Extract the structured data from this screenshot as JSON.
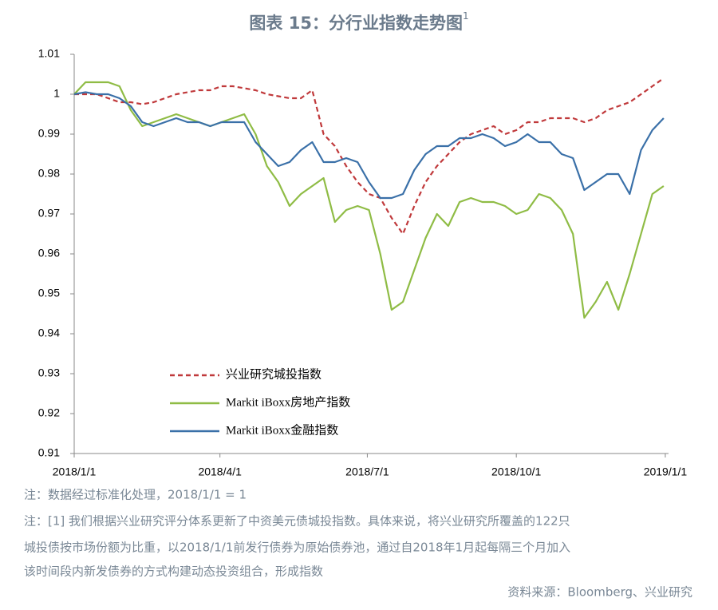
{
  "chart_data": {
    "type": "line",
    "title": "图表 15：分行业指数走势图",
    "title_superscript": "1",
    "x": [
      "2018/1/1",
      "2018/1/8",
      "2018/1/15",
      "2018/1/22",
      "2018/1/29",
      "2018/2/5",
      "2018/2/12",
      "2018/2/19",
      "2018/2/26",
      "2018/3/5",
      "2018/3/12",
      "2018/3/19",
      "2018/3/26",
      "2018/4/2",
      "2018/4/9",
      "2018/4/16",
      "2018/4/23",
      "2018/4/30",
      "2018/5/7",
      "2018/5/14",
      "2018/5/21",
      "2018/5/28",
      "2018/6/4",
      "2018/6/11",
      "2018/6/18",
      "2018/6/25",
      "2018/7/2",
      "2018/7/9",
      "2018/7/16",
      "2018/7/23",
      "2018/7/30",
      "2018/8/6",
      "2018/8/13",
      "2018/8/20",
      "2018/8/27",
      "2018/9/3",
      "2018/9/10",
      "2018/9/17",
      "2018/9/24",
      "2018/10/1",
      "2018/10/8",
      "2018/10/15",
      "2018/10/22",
      "2018/10/29",
      "2018/11/5",
      "2018/11/12",
      "2018/11/19",
      "2018/11/26",
      "2018/12/3",
      "2018/12/10",
      "2018/12/17",
      "2018/12/24",
      "2018/12/31"
    ],
    "series": [
      {
        "name": "兴业研究城投指数",
        "color": "#c0393b",
        "style": "dashed",
        "values": [
          1.0,
          1.0,
          1.0,
          0.999,
          0.998,
          0.998,
          0.9975,
          0.998,
          0.999,
          1.0,
          1.0005,
          1.001,
          1.001,
          1.002,
          1.002,
          1.0015,
          1.001,
          1.0,
          0.9995,
          0.999,
          0.999,
          1.001,
          0.99,
          0.987,
          0.982,
          0.978,
          0.975,
          0.974,
          0.969,
          0.965,
          0.972,
          0.978,
          0.982,
          0.985,
          0.988,
          0.99,
          0.991,
          0.992,
          0.99,
          0.991,
          0.993,
          0.993,
          0.994,
          0.994,
          0.994,
          0.993,
          0.994,
          0.996,
          0.997,
          0.998,
          1.0,
          1.002,
          1.004
        ]
      },
      {
        "name": "Markit iBoxx房地产指数",
        "color": "#8fbc45",
        "style": "solid",
        "values": [
          1.0,
          1.003,
          1.003,
          1.003,
          1.002,
          0.996,
          0.992,
          0.993,
          0.994,
          0.995,
          0.994,
          0.993,
          0.992,
          0.993,
          0.994,
          0.995,
          0.99,
          0.982,
          0.978,
          0.972,
          0.975,
          0.977,
          0.979,
          0.968,
          0.971,
          0.972,
          0.971,
          0.96,
          0.946,
          0.948,
          0.956,
          0.964,
          0.97,
          0.967,
          0.973,
          0.974,
          0.973,
          0.973,
          0.972,
          0.97,
          0.971,
          0.975,
          0.974,
          0.971,
          0.965,
          0.944,
          0.948,
          0.953,
          0.946,
          0.955,
          0.965,
          0.975,
          0.977
        ]
      },
      {
        "name": "Markit iBoxx金融指数",
        "color": "#3a70a8",
        "style": "solid",
        "values": [
          1.0,
          1.0005,
          1.0,
          1.0,
          0.999,
          0.997,
          0.993,
          0.992,
          0.993,
          0.994,
          0.993,
          0.993,
          0.992,
          0.993,
          0.993,
          0.993,
          0.988,
          0.985,
          0.982,
          0.983,
          0.986,
          0.988,
          0.983,
          0.983,
          0.984,
          0.983,
          0.978,
          0.974,
          0.974,
          0.975,
          0.981,
          0.985,
          0.987,
          0.987,
          0.989,
          0.989,
          0.99,
          0.989,
          0.987,
          0.988,
          0.99,
          0.988,
          0.988,
          0.985,
          0.984,
          0.976,
          0.978,
          0.98,
          0.98,
          0.975,
          0.986,
          0.991,
          0.994
        ]
      }
    ],
    "xlim": [
      "2018/1/1",
      "2019/1/3"
    ],
    "xticks": [
      "2018/1/1",
      "2018/4/1",
      "2018/7/1",
      "2018/10/1",
      "2019/1/1"
    ],
    "ylim": [
      0.91,
      1.01
    ],
    "yticks": [
      0.91,
      0.92,
      0.93,
      0.94,
      0.95,
      0.96,
      0.97,
      0.98,
      0.99,
      1,
      1.01
    ],
    "grid": false,
    "legend": "lower left"
  },
  "notes": [
    "注：数据经过标准化处理，2018/1/1 = 1",
    "注：[1] 我们根据兴业研究评分体系更新了中资美元债城投指数。具体来说，将兴业研究所覆盖的122只",
    "城投债按市场份额为比重，以2018/1/1前发行债券为原始债券池，通过自2018年1月起每隔三个月加入",
    "该时间段内新发债券的方式构建动态投资组合，形成指数"
  ],
  "source": "资料来源：Bloomberg、兴业研究"
}
